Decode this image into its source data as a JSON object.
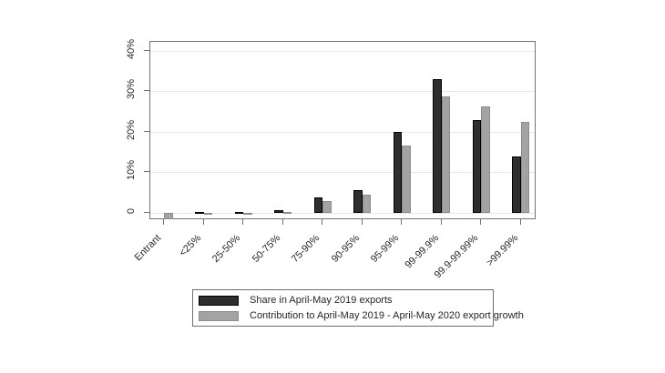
{
  "chart_data": {
    "type": "bar",
    "title": "",
    "xlabel": "",
    "ylabel": "",
    "categories": [
      "Entrant",
      "<25%",
      "25-50%",
      "50-75%",
      "75-90%",
      "90-95%",
      "95-99%",
      "99-99.9%",
      "99.9-99.99%",
      ">99.99%"
    ],
    "series": [
      {
        "name": "Share in April-May 2019 exports",
        "color": "#2e2e2e",
        "border_color": "#000000",
        "values": [
          0,
          0.3,
          0.3,
          0.7,
          3.8,
          5.5,
          20,
          33,
          23,
          14
        ]
      },
      {
        "name": "Contribution to April-May 2019 - April-May 2020 export growth",
        "color": "#a3a3a3",
        "border_color": "#8c8c8c",
        "values": [
          -1.5,
          -0.3,
          0.1,
          0.15,
          3.0,
          4.5,
          16.5,
          28.8,
          26.3,
          22.5
        ]
      }
    ],
    "y_ticks": [
      {
        "value": 0,
        "label": "0"
      },
      {
        "value": 10,
        "label": "10%"
      },
      {
        "value": 20,
        "label": "20%"
      },
      {
        "value": 30,
        "label": "30%"
      },
      {
        "value": 40,
        "label": "40%"
      }
    ],
    "ylim": [
      -1.8,
      42.2
    ],
    "grid": true,
    "gridline_color": "#e8e8e8",
    "axis_color": "#737373",
    "text_color": "#262626",
    "x_label_angle": 45,
    "y_label_angle": 90,
    "legend_position": "bottom"
  }
}
